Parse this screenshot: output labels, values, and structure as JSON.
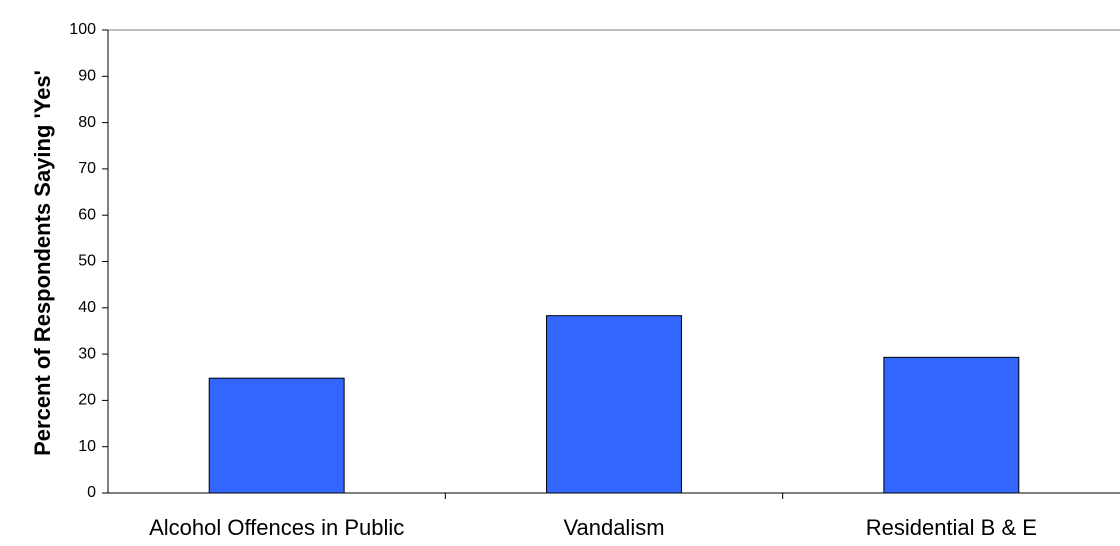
{
  "chart_data": {
    "type": "bar",
    "categories": [
      "Alcohol Offences in Public",
      "Vandalism",
      "Residential B & E"
    ],
    "values": [
      24.8,
      38.3,
      29.3
    ],
    "title": "",
    "xlabel": "",
    "ylabel": "Percent of Respondents Saying 'Yes'",
    "ylim": [
      0,
      100
    ],
    "yticks": [
      0,
      10,
      20,
      30,
      40,
      50,
      60,
      70,
      80,
      90,
      100
    ],
    "grid": false,
    "bar_color": "#3366ff",
    "bar_edge_color": "#000000"
  }
}
